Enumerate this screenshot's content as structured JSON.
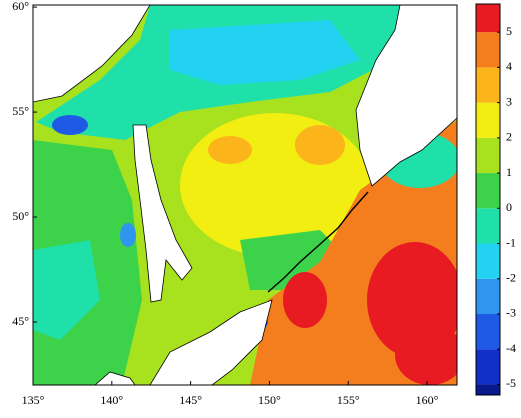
{
  "chart_data": {
    "type": "contour-map",
    "xlim": [
      135,
      161.9
    ],
    "ylim": [
      42,
      60.1
    ],
    "xticks": [
      {
        "value": 135,
        "label": "135°"
      },
      {
        "value": 140,
        "label": "140°"
      },
      {
        "value": 145,
        "label": "145°"
      },
      {
        "value": 150,
        "label": "150°"
      },
      {
        "value": 155,
        "label": "155°"
      },
      {
        "value": 160,
        "label": "160°"
      }
    ],
    "yticks": [
      {
        "value": 45,
        "label": "45°"
      },
      {
        "value": 50,
        "label": "50°"
      },
      {
        "value": 55,
        "label": "55°"
      },
      {
        "value": 60,
        "label": "60°"
      }
    ],
    "colorbar": {
      "lim": [
        -5.3,
        5.8
      ],
      "levels": [
        -5,
        -4,
        -3,
        -2,
        -1,
        0,
        1,
        2,
        3,
        4,
        5
      ],
      "colors": [
        "#0a1a8c",
        "#1030c8",
        "#1e5ae6",
        "#2f95ee",
        "#22d2f0",
        "#1fe0a8",
        "#3cd24a",
        "#a8e21e",
        "#f2ee12",
        "#fbb41a",
        "#f47e1e",
        "#e81b22"
      ]
    }
  }
}
